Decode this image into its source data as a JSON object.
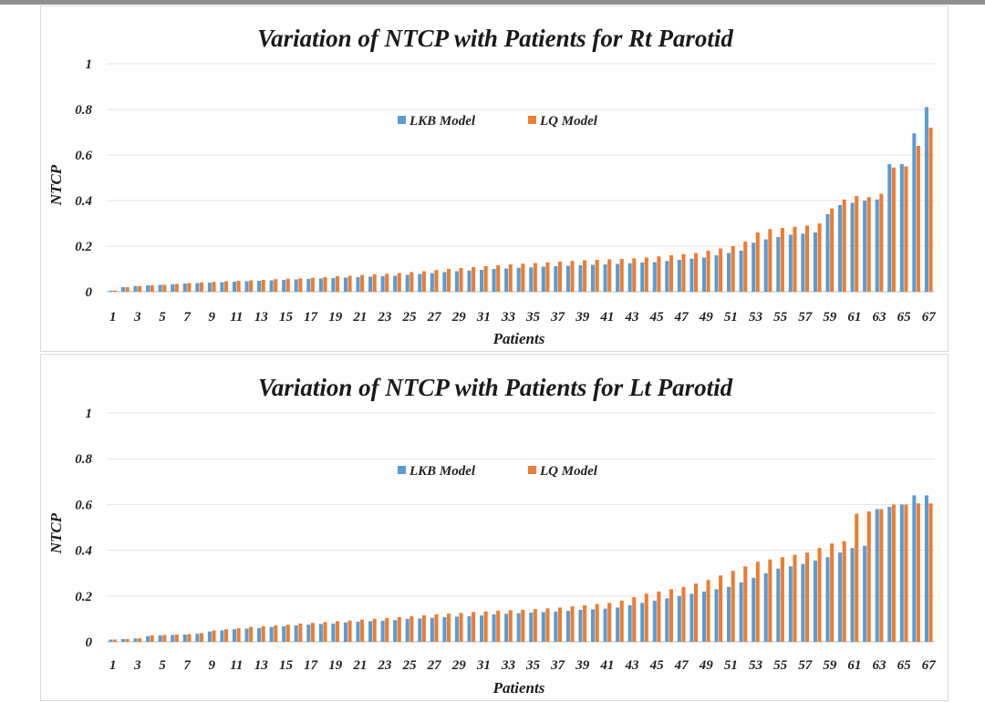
{
  "colors": {
    "lkb": "#5b9bd5",
    "lq": "#ed7d31",
    "grid": "#e3e3e3"
  },
  "chart_data": [
    {
      "type": "bar",
      "title": "Variation  of NTCP with Patients for Rt Parotid",
      "xlabel": "Patients",
      "ylabel": "NTCP",
      "ylim": [
        0,
        1
      ],
      "yticks": [
        "0",
        "0.2",
        "0.4",
        "0.6",
        "0.8",
        "1"
      ],
      "xticks": [
        "1",
        "3",
        "5",
        "7",
        "9",
        "11",
        "13",
        "15",
        "17",
        "19",
        "21",
        "23",
        "25",
        "27",
        "29",
        "31",
        "33",
        "35",
        "37",
        "39",
        "41",
        "43",
        "45",
        "47",
        "49",
        "51",
        "53",
        "55",
        "57",
        "59",
        "61",
        "63",
        "65",
        "67"
      ],
      "legend": "top-center",
      "grid": true,
      "series": [
        {
          "name": "LKB Model",
          "values": [
            0.005,
            0.02,
            0.025,
            0.028,
            0.03,
            0.033,
            0.036,
            0.038,
            0.04,
            0.042,
            0.044,
            0.046,
            0.048,
            0.05,
            0.052,
            0.054,
            0.056,
            0.058,
            0.06,
            0.062,
            0.064,
            0.066,
            0.068,
            0.07,
            0.074,
            0.078,
            0.082,
            0.086,
            0.09,
            0.093,
            0.096,
            0.1,
            0.102,
            0.105,
            0.107,
            0.11,
            0.112,
            0.114,
            0.116,
            0.118,
            0.12,
            0.122,
            0.125,
            0.128,
            0.13,
            0.135,
            0.14,
            0.145,
            0.15,
            0.16,
            0.17,
            0.18,
            0.215,
            0.23,
            0.24,
            0.25,
            0.255,
            0.26,
            0.34,
            0.38,
            0.39,
            0.4,
            0.405,
            0.56,
            0.56,
            0.695,
            0.81
          ]
        },
        {
          "name": "LQ Model",
          "values": [
            0.005,
            0.02,
            0.025,
            0.028,
            0.03,
            0.034,
            0.038,
            0.041,
            0.043,
            0.046,
            0.048,
            0.05,
            0.052,
            0.055,
            0.057,
            0.059,
            0.061,
            0.064,
            0.068,
            0.07,
            0.073,
            0.076,
            0.079,
            0.082,
            0.086,
            0.09,
            0.095,
            0.1,
            0.104,
            0.108,
            0.112,
            0.116,
            0.12,
            0.123,
            0.126,
            0.129,
            0.132,
            0.135,
            0.138,
            0.14,
            0.142,
            0.144,
            0.147,
            0.15,
            0.155,
            0.16,
            0.165,
            0.17,
            0.18,
            0.19,
            0.2,
            0.22,
            0.26,
            0.275,
            0.28,
            0.285,
            0.29,
            0.3,
            0.365,
            0.405,
            0.42,
            0.415,
            0.43,
            0.545,
            0.55,
            0.64,
            0.72
          ]
        }
      ]
    },
    {
      "type": "bar",
      "title": "Variation  of NTCP with Patients for Lt Parotid",
      "xlabel": "Patients",
      "ylabel": "NTCP",
      "ylim": [
        0,
        1
      ],
      "yticks": [
        "0",
        "0.2",
        "0.4",
        "0.6",
        "0.8",
        "1"
      ],
      "xticks": [
        "1",
        "3",
        "5",
        "7",
        "9",
        "11",
        "13",
        "15",
        "17",
        "19",
        "21",
        "23",
        "25",
        "27",
        "29",
        "31",
        "33",
        "35",
        "37",
        "39",
        "41",
        "43",
        "45",
        "47",
        "49",
        "51",
        "53",
        "55",
        "57",
        "59",
        "61",
        "63",
        "65",
        "67"
      ],
      "legend": "top-center",
      "grid": true,
      "series": [
        {
          "name": "LKB Model",
          "values": [
            0.01,
            0.012,
            0.015,
            0.025,
            0.028,
            0.03,
            0.032,
            0.035,
            0.045,
            0.05,
            0.055,
            0.058,
            0.06,
            0.065,
            0.068,
            0.072,
            0.075,
            0.078,
            0.08,
            0.085,
            0.088,
            0.09,
            0.092,
            0.095,
            0.1,
            0.102,
            0.105,
            0.108,
            0.11,
            0.112,
            0.115,
            0.12,
            0.122,
            0.125,
            0.128,
            0.13,
            0.132,
            0.135,
            0.14,
            0.142,
            0.145,
            0.15,
            0.16,
            0.17,
            0.18,
            0.19,
            0.2,
            0.21,
            0.22,
            0.23,
            0.24,
            0.26,
            0.28,
            0.3,
            0.32,
            0.33,
            0.34,
            0.355,
            0.37,
            0.39,
            0.41,
            0.42,
            0.58,
            0.59,
            0.6,
            0.64,
            0.64
          ]
        },
        {
          "name": "LQ Model",
          "values": [
            0.01,
            0.012,
            0.015,
            0.028,
            0.03,
            0.032,
            0.034,
            0.038,
            0.05,
            0.055,
            0.06,
            0.065,
            0.068,
            0.072,
            0.075,
            0.08,
            0.083,
            0.086,
            0.09,
            0.093,
            0.097,
            0.1,
            0.104,
            0.108,
            0.112,
            0.116,
            0.12,
            0.123,
            0.126,
            0.13,
            0.133,
            0.136,
            0.138,
            0.14,
            0.143,
            0.146,
            0.15,
            0.155,
            0.16,
            0.165,
            0.17,
            0.18,
            0.195,
            0.21,
            0.22,
            0.23,
            0.24,
            0.255,
            0.27,
            0.29,
            0.31,
            0.33,
            0.35,
            0.36,
            0.37,
            0.38,
            0.39,
            0.41,
            0.43,
            0.44,
            0.56,
            0.57,
            0.58,
            0.6,
            0.6,
            0.605,
            0.605
          ]
        }
      ]
    }
  ]
}
